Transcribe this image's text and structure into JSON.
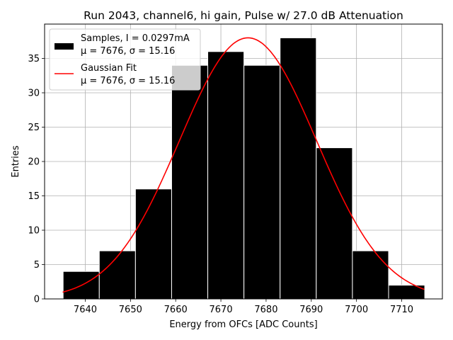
{
  "chart_data": {
    "type": "bar",
    "title": "Run 2043, channel6, hi gain, Pulse w/ 27.0 dB Attenuation",
    "xlabel": "Energy from OFCs [ADC Counts]",
    "ylabel": "Entries",
    "xlim": [
      7731.0,
      7719.0
    ],
    "x_range": [
      7631.0,
      7719.0
    ],
    "ylim": [
      0,
      40
    ],
    "xticks": [
      7640,
      7650,
      7660,
      7670,
      7680,
      7690,
      7700,
      7710
    ],
    "xtick_labels": [
      "7640",
      "7650",
      "7660",
      "7670",
      "7680",
      "7690",
      "7700",
      "7710"
    ],
    "yticks": [
      0,
      5,
      10,
      15,
      20,
      25,
      30,
      35
    ],
    "ytick_labels": [
      "0",
      "5",
      "10",
      "15",
      "20",
      "25",
      "30",
      "35"
    ],
    "grid": true,
    "legend_position": "top-left",
    "bins": [
      {
        "left": 7635.1,
        "right": 7643.1,
        "count": 4
      },
      {
        "left": 7643.1,
        "right": 7651.1,
        "count": 7
      },
      {
        "left": 7651.1,
        "right": 7659.1,
        "count": 16
      },
      {
        "left": 7659.1,
        "right": 7667.1,
        "count": 34
      },
      {
        "left": 7667.1,
        "right": 7675.1,
        "count": 36
      },
      {
        "left": 7675.1,
        "right": 7683.1,
        "count": 34
      },
      {
        "left": 7683.1,
        "right": 7691.1,
        "count": 38
      },
      {
        "left": 7691.1,
        "right": 7699.1,
        "count": 22
      },
      {
        "left": 7699.1,
        "right": 7707.1,
        "count": 7
      },
      {
        "left": 7707.1,
        "right": 7715.1,
        "count": 2
      }
    ],
    "series": [
      {
        "name": "Samples, I = 0.0297mA",
        "name_line2": "μ = 7676, σ = 15.16",
        "kind": "histogram",
        "color": "#000000"
      },
      {
        "name": "Gaussian Fit",
        "name_line2": "μ = 7676, σ = 15.16",
        "kind": "line",
        "color": "#ff0000",
        "mu": 7676.0,
        "sigma": 15.16,
        "amplitude": 38.0,
        "x_start": 7635.0,
        "x_end": 7715.0
      }
    ]
  }
}
